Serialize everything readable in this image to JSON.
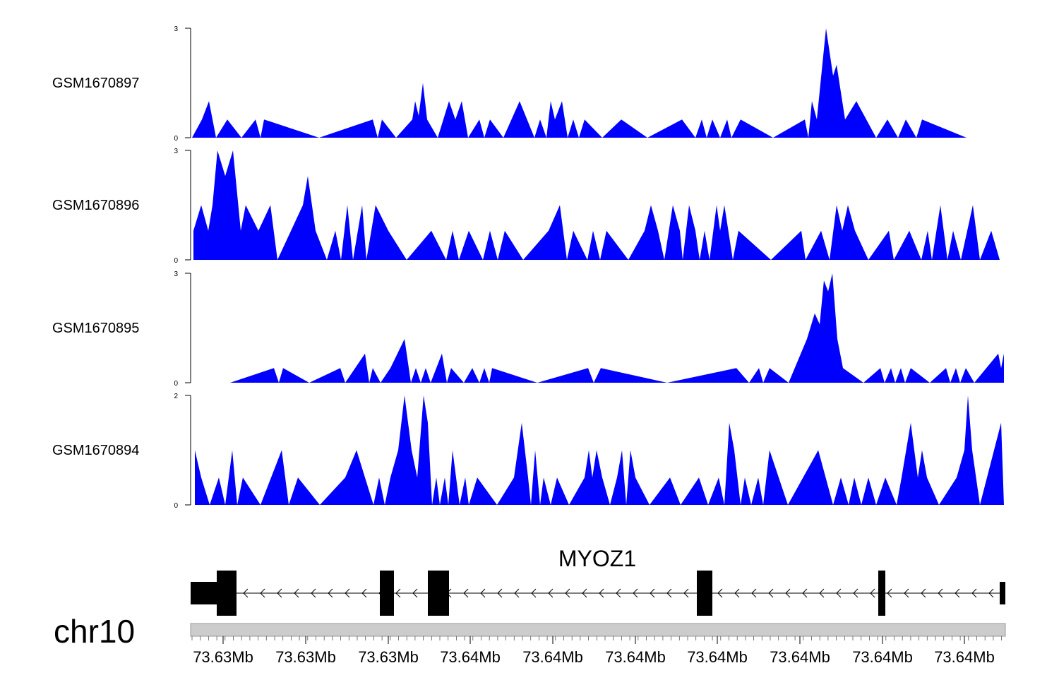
{
  "chart_data": {
    "type": "area",
    "chromosome": "chr10",
    "gene": {
      "name": "MYOZ1",
      "strand": "-"
    },
    "x_tick_labels": [
      "73.63Mb",
      "73.63Mb",
      "73.63Mb",
      "73.64Mb",
      "73.64Mb",
      "73.64Mb",
      "73.64Mb",
      "73.64Mb",
      "73.64Mb",
      "73.64Mb"
    ],
    "tracks": [
      {
        "name": "GSM1670897",
        "ylim": [
          0,
          3
        ],
        "y_ticks": [
          "3",
          "0"
        ],
        "points": [
          [
            272,
            0
          ],
          [
            286,
            0.5
          ],
          [
            296,
            1
          ],
          [
            306,
            0
          ],
          [
            322,
            0.5
          ],
          [
            342,
            0
          ],
          [
            362,
            0.5
          ],
          [
            369,
            0
          ],
          [
            374,
            0.5
          ],
          [
            452,
            0
          ],
          [
            528,
            0.5
          ],
          [
            535,
            0
          ],
          [
            541,
            0.5
          ],
          [
            561,
            0
          ],
          [
            584,
            0.5
          ],
          [
            588,
            1
          ],
          [
            593,
            0.6
          ],
          [
            599,
            1.5
          ],
          [
            605,
            0.5
          ],
          [
            620,
            0
          ],
          [
            636,
            1
          ],
          [
            645,
            0.5
          ],
          [
            654,
            1
          ],
          [
            663,
            0
          ],
          [
            679,
            0.5
          ],
          [
            686,
            0
          ],
          [
            694,
            0.5
          ],
          [
            713,
            0
          ],
          [
            736,
            1
          ],
          [
            757,
            0
          ],
          [
            765,
            0.5
          ],
          [
            774,
            0
          ],
          [
            780,
            1
          ],
          [
            786,
            0.5
          ],
          [
            796,
            1
          ],
          [
            804,
            0
          ],
          [
            812,
            0.5
          ],
          [
            820,
            0
          ],
          [
            828,
            0.5
          ],
          [
            853,
            0
          ],
          [
            880,
            0.5
          ],
          [
            917,
            0
          ],
          [
            966,
            0.5
          ],
          [
            985,
            0
          ],
          [
            994,
            0.5
          ],
          [
            1001,
            0
          ],
          [
            1009,
            0.5
          ],
          [
            1020,
            0
          ],
          [
            1030,
            0.5
          ],
          [
            1036,
            0
          ],
          [
            1049,
            0.5
          ],
          [
            1095,
            0
          ],
          [
            1140,
            0.5
          ],
          [
            1145,
            0
          ],
          [
            1150,
            1
          ],
          [
            1157,
            0.5
          ],
          [
            1170,
            3
          ],
          [
            1180,
            1.7
          ],
          [
            1185,
            2
          ],
          [
            1197,
            0.5
          ],
          [
            1213,
            1
          ],
          [
            1241,
            0
          ],
          [
            1257,
            0.5
          ],
          [
            1272,
            0
          ],
          [
            1283,
            0.5
          ],
          [
            1298,
            0
          ],
          [
            1306,
            0.5
          ],
          [
            1369,
            0
          ]
        ]
      },
      {
        "name": "GSM1670896",
        "ylim": [
          0,
          3
        ],
        "y_ticks": [
          "3",
          "0"
        ],
        "points": [
          [
            274,
            0
          ],
          [
            274,
            0.8
          ],
          [
            285,
            1.5
          ],
          [
            295,
            0.8
          ],
          [
            301,
            1.5
          ],
          [
            308,
            3
          ],
          [
            319,
            2.3
          ],
          [
            330,
            3
          ],
          [
            341,
            0.8
          ],
          [
            348,
            1.5
          ],
          [
            366,
            0.8
          ],
          [
            383,
            1.5
          ],
          [
            393,
            0
          ],
          [
            429,
            1.5
          ],
          [
            436,
            2.3
          ],
          [
            447,
            0.8
          ],
          [
            463,
            0
          ],
          [
            475,
            0.8
          ],
          [
            483,
            0
          ],
          [
            492,
            1.5
          ],
          [
            500,
            0
          ],
          [
            513,
            1.5
          ],
          [
            519,
            0
          ],
          [
            532,
            1.5
          ],
          [
            550,
            0.8
          ],
          [
            576,
            0
          ],
          [
            611,
            0.8
          ],
          [
            632,
            0
          ],
          [
            641,
            0.8
          ],
          [
            650,
            0
          ],
          [
            664,
            0.8
          ],
          [
            684,
            0
          ],
          [
            694,
            0.8
          ],
          [
            705,
            0
          ],
          [
            715,
            0.8
          ],
          [
            741,
            0
          ],
          [
            777,
            0.8
          ],
          [
            793,
            1.5
          ],
          [
            803,
            0
          ],
          [
            812,
            0.8
          ],
          [
            832,
            0
          ],
          [
            840,
            0.8
          ],
          [
            850,
            0
          ],
          [
            859,
            0.8
          ],
          [
            890,
            0
          ],
          [
            913,
            0.8
          ],
          [
            922,
            1.5
          ],
          [
            932,
            0.8
          ],
          [
            941,
            0
          ],
          [
            953,
            1.5
          ],
          [
            963,
            0.8
          ],
          [
            967,
            0
          ],
          [
            976,
            1.5
          ],
          [
            985,
            0.8
          ],
          [
            991,
            0
          ],
          [
            998,
            0.8
          ],
          [
            1005,
            0
          ],
          [
            1015,
            1.5
          ],
          [
            1020,
            0.8
          ],
          [
            1026,
            1.5
          ],
          [
            1038,
            0
          ],
          [
            1046,
            0.8
          ],
          [
            1092,
            0
          ],
          [
            1135,
            0.8
          ],
          [
            1141,
            0
          ],
          [
            1163,
            0.8
          ],
          [
            1175,
            0
          ],
          [
            1185,
            1.5
          ],
          [
            1193,
            0.8
          ],
          [
            1201,
            1.5
          ],
          [
            1211,
            0.8
          ],
          [
            1230,
            0
          ],
          [
            1259,
            0.8
          ],
          [
            1266,
            0
          ],
          [
            1288,
            0.8
          ],
          [
            1305,
            0
          ],
          [
            1314,
            0.8
          ],
          [
            1320,
            0
          ],
          [
            1332,
            1.5
          ],
          [
            1342,
            0
          ],
          [
            1350,
            0.8
          ],
          [
            1361,
            0
          ],
          [
            1378,
            1.5
          ],
          [
            1388,
            0
          ],
          [
            1404,
            0.8
          ],
          [
            1416,
            0
          ]
        ]
      },
      {
        "name": "GSM1670895",
        "ylim": [
          0,
          3
        ],
        "y_ticks": [
          "3",
          "0"
        ],
        "points": [
          [
            326,
            0
          ],
          [
            388,
            0.4
          ],
          [
            395,
            0
          ],
          [
            401,
            0.4
          ],
          [
            438,
            0
          ],
          [
            482,
            0.4
          ],
          [
            489,
            0
          ],
          [
            517,
            0.8
          ],
          [
            523,
            0
          ],
          [
            528,
            0.4
          ],
          [
            539,
            0
          ],
          [
            553,
            0.4
          ],
          [
            573,
            1.2
          ],
          [
            582,
            0
          ],
          [
            589,
            0.4
          ],
          [
            596,
            0
          ],
          [
            603,
            0.4
          ],
          [
            610,
            0
          ],
          [
            626,
            0.8
          ],
          [
            633,
            0
          ],
          [
            639,
            0.4
          ],
          [
            657,
            0
          ],
          [
            669,
            0.4
          ],
          [
            679,
            0
          ],
          [
            686,
            0.4
          ],
          [
            693,
            0
          ],
          [
            697,
            0.4
          ],
          [
            761,
            0
          ],
          [
            833,
            0.4
          ],
          [
            841,
            0
          ],
          [
            851,
            0.4
          ],
          [
            945,
            0
          ],
          [
            1043,
            0.4
          ],
          [
            1061,
            0
          ],
          [
            1075,
            0.4
          ],
          [
            1081,
            0
          ],
          [
            1090,
            0.4
          ],
          [
            1117,
            0
          ],
          [
            1143,
            1.2
          ],
          [
            1154,
            1.9
          ],
          [
            1161,
            1.6
          ],
          [
            1167,
            2.8
          ],
          [
            1173,
            2.5
          ],
          [
            1179,
            3
          ],
          [
            1186,
            1.2
          ],
          [
            1194,
            0.4
          ],
          [
            1223,
            0
          ],
          [
            1247,
            0.4
          ],
          [
            1253,
            0
          ],
          [
            1262,
            0.4
          ],
          [
            1268,
            0
          ],
          [
            1276,
            0.4
          ],
          [
            1282,
            0
          ],
          [
            1290,
            0.4
          ],
          [
            1317,
            0
          ],
          [
            1340,
            0.4
          ],
          [
            1346,
            0
          ],
          [
            1354,
            0.4
          ],
          [
            1360,
            0
          ],
          [
            1368,
            0.4
          ],
          [
            1380,
            0
          ],
          [
            1414,
            0.8
          ],
          [
            1418,
            0.4
          ],
          [
            1422,
            0.8
          ],
          [
            1422,
            0
          ]
        ]
      },
      {
        "name": "GSM1670894",
        "ylim": [
          0,
          2
        ],
        "y_ticks": [
          "2",
          "0"
        ],
        "points": [
          [
            276,
            0
          ],
          [
            276,
            1
          ],
          [
            285,
            0.5
          ],
          [
            297,
            0
          ],
          [
            310,
            0.5
          ],
          [
            319,
            0
          ],
          [
            329,
            1
          ],
          [
            336,
            0
          ],
          [
            344,
            0.5
          ],
          [
            369,
            0
          ],
          [
            399,
            1
          ],
          [
            409,
            0
          ],
          [
            422,
            0.5
          ],
          [
            453,
            0
          ],
          [
            489,
            0.5
          ],
          [
            505,
            1
          ],
          [
            529,
            0
          ],
          [
            537,
            0.5
          ],
          [
            545,
            0
          ],
          [
            553,
            0.5
          ],
          [
            564,
            1
          ],
          [
            573,
            2
          ],
          [
            583,
            1
          ],
          [
            591,
            0.5
          ],
          [
            600,
            2
          ],
          [
            606,
            1.5
          ],
          [
            612,
            0
          ],
          [
            618,
            0.5
          ],
          [
            623,
            0
          ],
          [
            630,
            0.5
          ],
          [
            635,
            0
          ],
          [
            641,
            1
          ],
          [
            651,
            0
          ],
          [
            659,
            0.5
          ],
          [
            664,
            0
          ],
          [
            676,
            0.5
          ],
          [
            704,
            0
          ],
          [
            728,
            0.5
          ],
          [
            739,
            1.5
          ],
          [
            748,
            0.5
          ],
          [
            752,
            0
          ],
          [
            758,
            1
          ],
          [
            765,
            0
          ],
          [
            770,
            0.5
          ],
          [
            780,
            0
          ],
          [
            789,
            0.5
          ],
          [
            806,
            0
          ],
          [
            828,
            0.5
          ],
          [
            834,
            1
          ],
          [
            839,
            0.5
          ],
          [
            845,
            1
          ],
          [
            853,
            0.5
          ],
          [
            864,
            0
          ],
          [
            874,
            0.5
          ],
          [
            881,
            1
          ],
          [
            887,
            0
          ],
          [
            893,
            1
          ],
          [
            900,
            0.5
          ],
          [
            920,
            0
          ],
          [
            949,
            0.5
          ],
          [
            964,
            0
          ],
          [
            990,
            0.5
          ],
          [
            1003,
            0
          ],
          [
            1018,
            0.5
          ],
          [
            1026,
            0
          ],
          [
            1033,
            1.5
          ],
          [
            1040,
            1
          ],
          [
            1049,
            0
          ],
          [
            1055,
            0.5
          ],
          [
            1064,
            0
          ],
          [
            1074,
            0.5
          ],
          [
            1081,
            0
          ],
          [
            1090,
            1
          ],
          [
            1116,
            0
          ],
          [
            1159,
            1
          ],
          [
            1180,
            0
          ],
          [
            1191,
            0.5
          ],
          [
            1202,
            0
          ],
          [
            1210,
            0.5
          ],
          [
            1220,
            0
          ],
          [
            1230,
            0.5
          ],
          [
            1241,
            0
          ],
          [
            1254,
            0.5
          ],
          [
            1270,
            0
          ],
          [
            1277,
            0.5
          ],
          [
            1290,
            1.5
          ],
          [
            1300,
            0.5
          ],
          [
            1306,
            1
          ],
          [
            1313,
            0.5
          ],
          [
            1330,
            0
          ],
          [
            1355,
            0.5
          ],
          [
            1366,
            1
          ],
          [
            1371,
            2
          ],
          [
            1377,
            1
          ],
          [
            1388,
            0
          ],
          [
            1418,
            1.5
          ],
          [
            1422,
            0
          ]
        ]
      }
    ]
  }
}
